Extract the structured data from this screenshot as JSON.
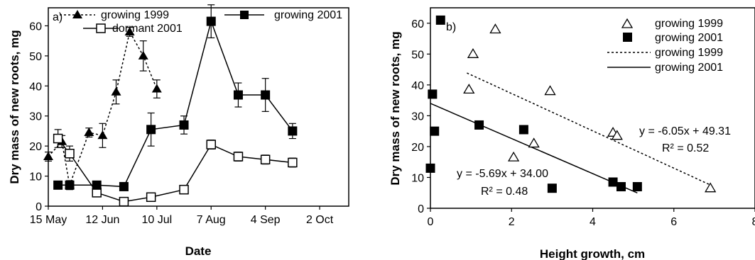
{
  "chart_data": [
    {
      "type": "line",
      "panel_label": "a)",
      "xlabel": "Date",
      "ylabel": "Dry mass of new roots, mg",
      "xticks": [
        "15 May",
        "12 Jun",
        "10 Jul",
        "7 Aug",
        "4 Sep",
        "2 Oct"
      ],
      "xrange_days_labels": [
        "15 May",
        "17 Oct"
      ],
      "yticks": [
        "0",
        "10",
        "20",
        "30",
        "40",
        "50",
        "60"
      ],
      "ylim": [
        0,
        66
      ],
      "series": [
        {
          "name": "growing 1999",
          "marker": "filled-triangle",
          "line": "dotted",
          "x": [
            "15 May",
            "22 May",
            "26 May",
            "5 Jun",
            "12 Jun",
            "19 Jun",
            "26 Jun",
            "3 Jul",
            "10 Jul"
          ],
          "y": [
            16.5,
            21.5,
            7,
            24.5,
            23.5,
            38,
            58,
            50,
            39
          ],
          "err": [
            1.5,
            2,
            1.5,
            1.5,
            4,
            4,
            1.5,
            5,
            3
          ]
        },
        {
          "name": "dormant 2001",
          "marker": "open-square",
          "line": "solid",
          "x": [
            "20 May",
            "26 May",
            "9 Jun",
            "23 Jun",
            "7 Jul",
            "24 Jul",
            "7 Aug",
            "21 Aug",
            "4 Sep",
            "18 Sep"
          ],
          "y": [
            22.5,
            17.5,
            4.5,
            1.5,
            3,
            5.5,
            20.5,
            16.5,
            15.5,
            14.5
          ],
          "err": [
            3,
            2.5,
            1,
            1,
            1,
            1,
            1.5,
            1.5,
            1.5,
            1.5
          ]
        },
        {
          "name": "growing 2001",
          "marker": "filled-square",
          "line": "solid",
          "x": [
            "20 May",
            "26 May",
            "9 Jun",
            "23 Jun",
            "7 Jul",
            "24 Jul",
            "7 Aug",
            "21 Aug",
            "4 Sep",
            "18 Sep"
          ],
          "y": [
            7,
            7,
            7,
            6.5,
            25.5,
            27,
            61.5,
            37,
            37,
            25
          ],
          "err": [
            0.5,
            1,
            0.5,
            1,
            5.5,
            3,
            5.5,
            4,
            5.5,
            2.5
          ]
        }
      ],
      "legend": [
        "growing 1999",
        "dormant 2001",
        "growing 2001"
      ]
    },
    {
      "type": "scatter",
      "panel_label": "b)",
      "xlabel": "Height growth, cm",
      "ylabel": "Dry mass of new roots, mg",
      "xticks": [
        "0",
        "2",
        "4",
        "6",
        "8"
      ],
      "xlim": [
        0,
        8
      ],
      "yticks": [
        "0",
        "10",
        "20",
        "30",
        "40",
        "50",
        "60"
      ],
      "ylim": [
        0,
        65
      ],
      "series": [
        {
          "name": "growing 1999",
          "marker": "open-triangle",
          "points": [
            [
              1.6,
              58
            ],
            [
              1.05,
              50
            ],
            [
              0.95,
              38.5
            ],
            [
              2.95,
              38
            ],
            [
              4.5,
              24.5
            ],
            [
              4.6,
              23.5
            ],
            [
              2.55,
              21
            ],
            [
              2.05,
              16.5
            ],
            [
              6.9,
              6.5
            ]
          ]
        },
        {
          "name": "growing 2001",
          "marker": "filled-square",
          "points": [
            [
              0.25,
              61
            ],
            [
              0.05,
              37
            ],
            [
              0.1,
              25
            ],
            [
              1.2,
              27
            ],
            [
              2.3,
              25.5
            ],
            [
              0.0,
              13
            ],
            [
              3.0,
              6.5
            ],
            [
              4.5,
              8.5
            ],
            [
              4.7,
              7
            ],
            [
              5.1,
              7
            ]
          ]
        }
      ],
      "fits": [
        {
          "name": "growing 1999",
          "line": "dotted",
          "slope": -6.05,
          "intercept": 49.31,
          "x_range": [
            0.9,
            6.9
          ],
          "equation": "y = -6.05x + 49.31",
          "r2": "R² = 0.52"
        },
        {
          "name": "growing 2001",
          "line": "solid",
          "slope": -5.69,
          "intercept": 34.0,
          "x_range": [
            0,
            5.1
          ],
          "equation": "y = -5.69x + 34.00",
          "r2": "R² = 0.48"
        }
      ],
      "legend": [
        "growing 1999",
        "growing 2001",
        "growing 1999",
        "growing 2001"
      ]
    }
  ]
}
